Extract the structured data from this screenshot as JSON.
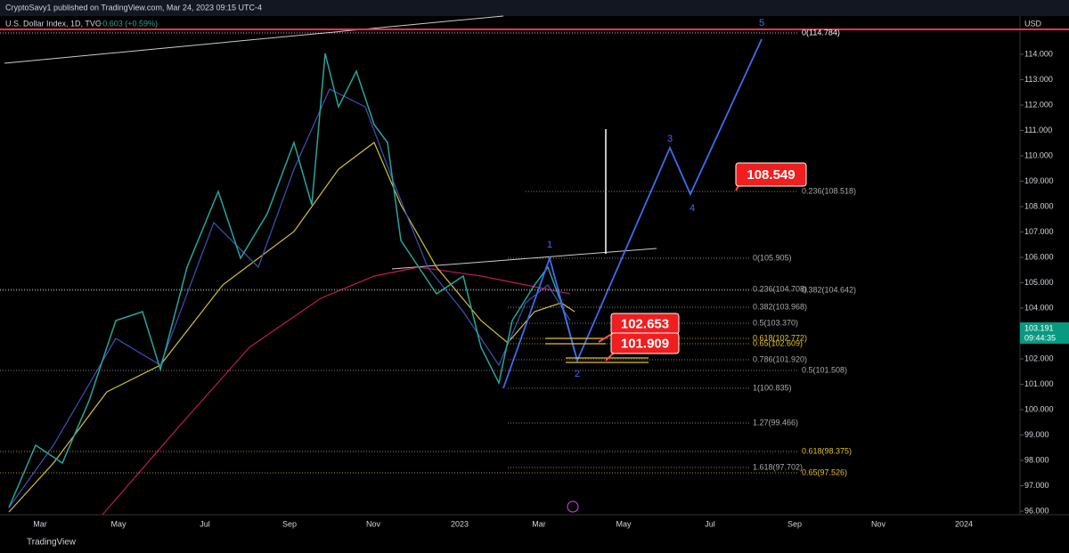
{
  "header": {
    "author": "CryptoSavy1 published on TradingView.com, Mar 24, 2023 09:15 UTC-4",
    "symbol": "U.S. Dollar Index, 1D, TVC",
    "change": "+0.603 (+0.59%)"
  },
  "price_axis": {
    "currency": "USD",
    "labels": [
      "114.000",
      "113.000",
      "112.000",
      "111.000",
      "110.000",
      "109.000",
      "108.000",
      "107.000",
      "106.000",
      "105.000",
      "104.000",
      "103.000",
      "102.000",
      "101.000",
      "100.000",
      "99.000",
      "98.000",
      "97.000",
      "96.000"
    ],
    "current_price": "103.191",
    "countdown": "09:44:35"
  },
  "time_axis": {
    "labels": [
      "Mar",
      "May",
      "Jul",
      "Sep",
      "Nov",
      "2023",
      "Mar",
      "May",
      "Jul",
      "Sep",
      "Nov",
      "2024"
    ]
  },
  "fib_levels": [
    {
      "label": "0(114.784)"
    },
    {
      "label": "0.236(108.518)"
    },
    {
      "label": "0(105.905)"
    },
    {
      "label": "0.236(104.708)"
    },
    {
      "label": "0.382(104.642)"
    },
    {
      "label": "0.382(103.968)"
    },
    {
      "label": "0.5(103.370)"
    },
    {
      "label": "0.618(102.772)"
    },
    {
      "label": "0.65(102.609)"
    },
    {
      "label": "0.786(101.920)"
    },
    {
      "label": "0.5(101.508)"
    },
    {
      "label": "1(100.835)"
    },
    {
      "label": "1.27(99.466)"
    },
    {
      "label": "0.618(98.375)"
    },
    {
      "label": "1.618(97.702)"
    },
    {
      "label": "0.65(97.526)"
    }
  ],
  "wave_labels": [
    "1",
    "2",
    "3",
    "4",
    "5"
  ],
  "callouts": [
    "108.549",
    "102.653",
    "101.909"
  ],
  "footer": {
    "brand": "TradingView"
  }
}
